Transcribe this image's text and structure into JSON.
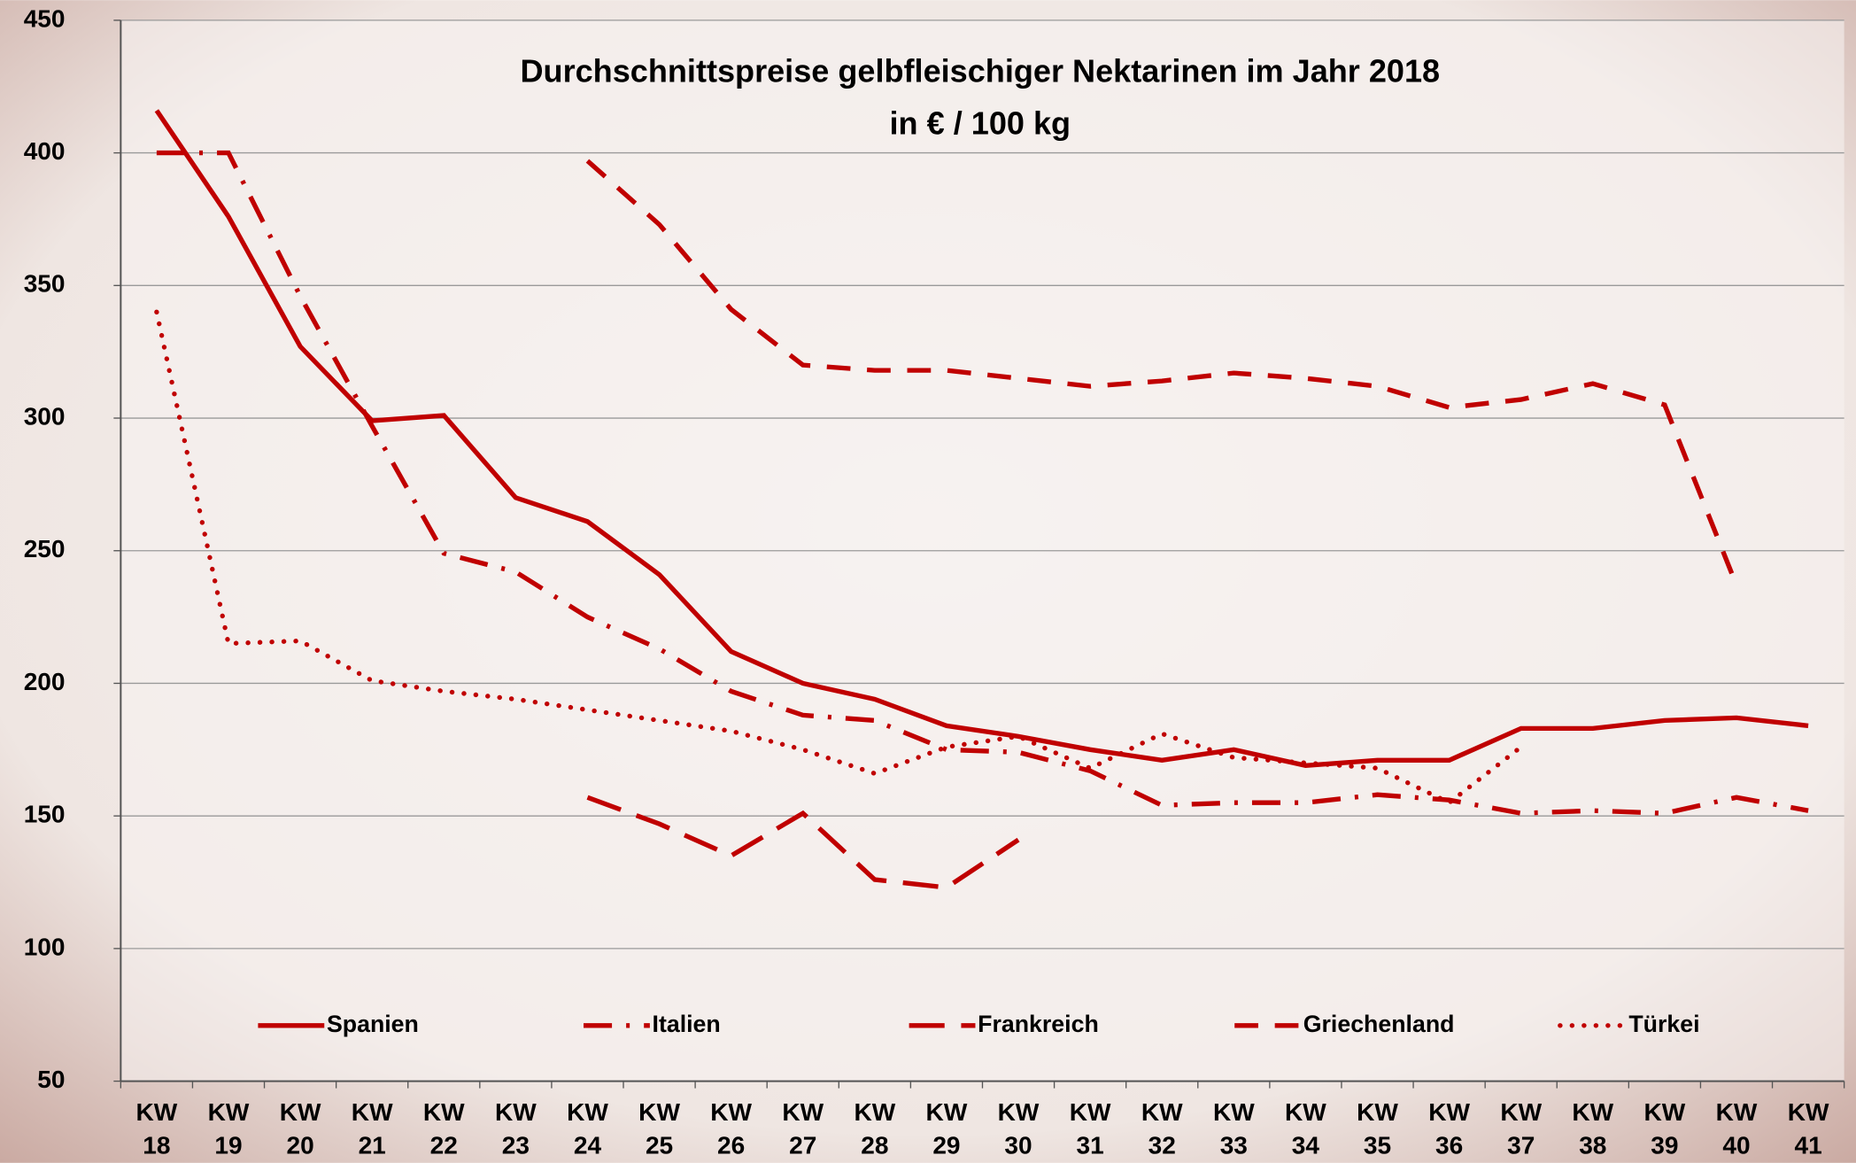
{
  "chart_data": {
    "type": "line",
    "title": "Durchschnittspreise gelbfleischiger Nektarinen im Jahr 2018",
    "subtitle": "in € / 100 kg",
    "categories": [
      "KW 18",
      "KW 19",
      "KW 20",
      "KW 21",
      "KW 22",
      "KW 23",
      "KW 24",
      "KW 25",
      "KW 26",
      "KW 27",
      "KW 28",
      "KW 29",
      "KW 30",
      "KW 31",
      "KW 32",
      "KW 33",
      "KW 34",
      "KW 35",
      "KW 36",
      "KW 37",
      "KW 38",
      "KW 39",
      "KW 40",
      "KW 41"
    ],
    "series": [
      {
        "name": "Spanien",
        "color": "#c00000",
        "line_style": "solid",
        "values": [
          416,
          376,
          327,
          299,
          301,
          270,
          261,
          241,
          212,
          200,
          194,
          184,
          180,
          175,
          171,
          175,
          169,
          171,
          171,
          183,
          183,
          186,
          187,
          184
        ]
      },
      {
        "name": "Italien",
        "color": "#c00000",
        "line_style": "dashdot",
        "values": [
          400,
          400,
          346,
          297,
          249,
          242,
          225,
          213,
          197,
          188,
          186,
          175,
          174,
          167,
          154,
          155,
          155,
          158,
          156,
          151,
          152,
          151,
          157,
          152
        ]
      },
      {
        "name": "Frankreich",
        "color": "#c00000",
        "line_style": "longdash",
        "values": [
          null,
          null,
          null,
          null,
          null,
          null,
          157,
          147,
          135,
          151,
          126,
          123,
          141,
          null,
          null,
          null,
          null,
          null,
          null,
          null,
          null,
          null,
          null,
          null
        ]
      },
      {
        "name": "Griechenland",
        "color": "#c00000",
        "line_style": "dash",
        "values": [
          null,
          null,
          null,
          null,
          null,
          null,
          397,
          373,
          341,
          320,
          318,
          318,
          315,
          312,
          314,
          317,
          315,
          312,
          304,
          307,
          313,
          305,
          237,
          null
        ]
      },
      {
        "name": "Türkei",
        "color": "#c00000",
        "line_style": "dot",
        "values": [
          340,
          215,
          216,
          201,
          197,
          194,
          190,
          186,
          182,
          175,
          166,
          176,
          180,
          168,
          181,
          172,
          170,
          168,
          155,
          176,
          null,
          null,
          null,
          null
        ]
      }
    ],
    "ylim": [
      50,
      450
    ],
    "yticks": [
      50,
      100,
      150,
      200,
      250,
      300,
      350,
      400,
      450
    ],
    "grid": true,
    "legend": "bottom"
  }
}
